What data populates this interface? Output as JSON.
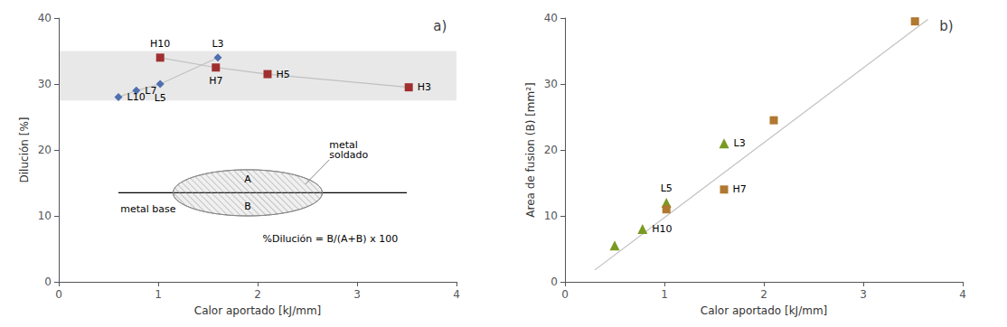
{
  "chart_data": [
    {
      "type": "scatter",
      "title": "a)",
      "x_label": "Calor aportado [kJ/mm]",
      "y_label": "Dilución [%]",
      "xlim": [
        0,
        4
      ],
      "ylim": [
        0,
        40
      ],
      "xticks": [
        0,
        1,
        2,
        3,
        4
      ],
      "yticks": [
        0,
        10,
        20,
        30,
        40
      ],
      "grid": false,
      "band": {
        "y": [
          27.5,
          35.0
        ],
        "color": "#e8e8e8"
      },
      "series": [
        {
          "type": "line",
          "color": "#c0c0c0",
          "x": [
            0.6,
            0.78,
            1.02,
            1.6
          ],
          "values": [
            28.0,
            29.0,
            30.0,
            34.0
          ]
        },
        {
          "type": "line",
          "color": "#c0c0c0",
          "x": [
            1.02,
            1.58,
            2.1,
            3.52
          ],
          "values": [
            34.0,
            32.5,
            31.5,
            29.5
          ]
        },
        {
          "type": "scatter",
          "marker": "diamond",
          "color": "#4f6fae",
          "x": [
            0.6,
            0.78,
            1.02,
            1.6
          ],
          "values": [
            28.0,
            29.0,
            30.0,
            34.0
          ],
          "labels": [
            "L10",
            "L7",
            "L5",
            "L3"
          ]
        },
        {
          "type": "scatter",
          "marker": "square",
          "color": "#a03030",
          "x": [
            1.02,
            1.58,
            2.1,
            3.52
          ],
          "values": [
            34.0,
            32.5,
            31.5,
            29.5
          ],
          "labels": [
            "H10",
            "H7",
            "H5",
            "H3"
          ]
        }
      ],
      "shapes": [
        {
          "type": "hline",
          "x": [
            0.6,
            3.5
          ],
          "y": 13.5,
          "color": "#000000"
        },
        {
          "type": "ellipse",
          "cx": 1.9,
          "cy": 13.5,
          "rx": 0.75,
          "ry": 3.5,
          "color": "#888888"
        }
      ],
      "annotations": [
        {
          "text": "A",
          "x": 1.9,
          "y": 15.5
        },
        {
          "text": "B",
          "x": 1.9,
          "y": 11.5
        },
        {
          "text": "metal base",
          "x": 0.62,
          "y": 11.0
        },
        {
          "text": "metal\nsoldado",
          "x": 2.72,
          "y": 18.5,
          "line_to": [
            2.48,
            14.8
          ],
          "color": "#888888"
        },
        {
          "text": "%Dilución = B/(A+B) x 100",
          "x": 2.05,
          "y": 6.5
        }
      ]
    },
    {
      "type": "scatter",
      "title": "b)",
      "x_label": "Calor aportado [kJ/mm]",
      "y_label": "Area de fusion (B) [mm²]",
      "xlim": [
        0,
        4
      ],
      "ylim": [
        0,
        40
      ],
      "xticks": [
        0,
        1,
        2,
        3,
        4
      ],
      "yticks": [
        0,
        10,
        20,
        30,
        40
      ],
      "grid": false,
      "series": [
        {
          "type": "line",
          "color": "#c0c0c0",
          "x": [
            0.3,
            3.65
          ],
          "values": [
            1.8,
            39.8
          ]
        },
        {
          "type": "scatter",
          "marker": "triangle",
          "color": "#7a9a20",
          "x": [
            0.5,
            0.78,
            1.02,
            1.6
          ],
          "values": [
            5.5,
            8.0,
            12.0,
            21.0
          ],
          "labels": [
            null,
            "H10",
            "L5",
            "L3"
          ]
        },
        {
          "type": "scatter",
          "marker": "square",
          "color": "#b07830",
          "x": [
            1.02,
            1.6,
            2.1,
            3.52
          ],
          "values": [
            11.0,
            14.0,
            24.5,
            39.5
          ],
          "labels": [
            null,
            "H7",
            null,
            null
          ]
        }
      ]
    }
  ]
}
